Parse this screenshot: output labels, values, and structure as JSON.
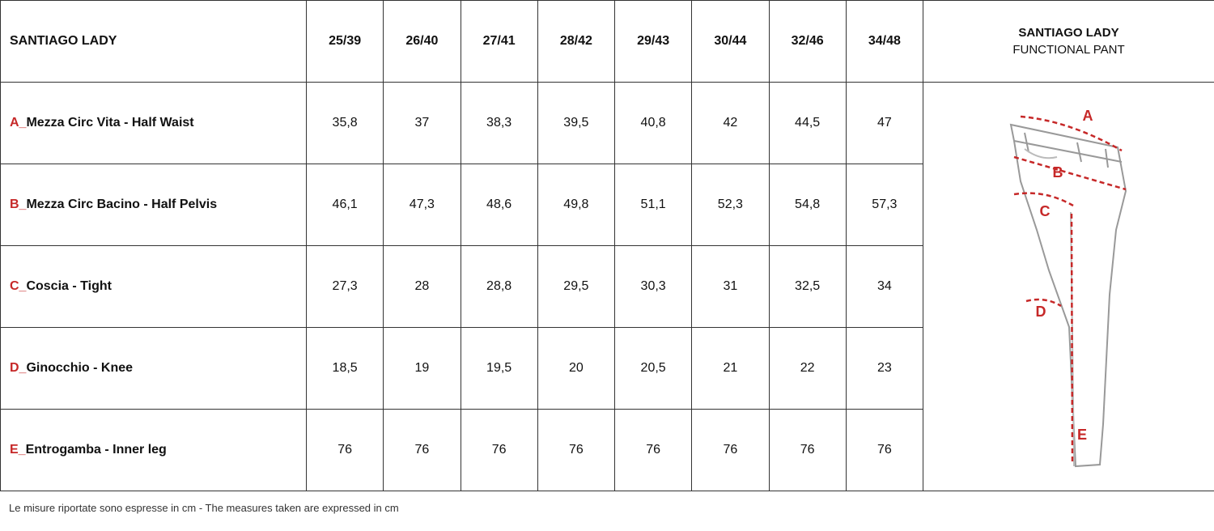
{
  "table": {
    "header": {
      "title": "SANTIAGO LADY",
      "sizes": [
        "25/39",
        "26/40",
        "27/41",
        "28/42",
        "29/43",
        "30/44",
        "32/46",
        "34/48"
      ],
      "product_line1": "SANTIAGO LADY",
      "product_line2": "FUNCTIONAL PANT"
    },
    "rows": [
      {
        "letter": "A_",
        "label": "Mezza Circ Vita - Half Waist",
        "values": [
          "35,8",
          "37",
          "38,3",
          "39,5",
          "40,8",
          "42",
          "44,5",
          "47"
        ]
      },
      {
        "letter": "B_",
        "label": "Mezza Circ Bacino - Half Pelvis",
        "values": [
          "46,1",
          "47,3",
          "48,6",
          "49,8",
          "51,1",
          "52,3",
          "54,8",
          "57,3"
        ]
      },
      {
        "letter": "C_",
        "label": "Coscia - Tight",
        "values": [
          "27,3",
          "28",
          "28,8",
          "29,5",
          "30,3",
          "31",
          "32,5",
          "34"
        ]
      },
      {
        "letter": "D_",
        "label": "Ginocchio - Knee",
        "values": [
          "18,5",
          "19",
          "19,5",
          "20",
          "20,5",
          "21",
          "22",
          "23"
        ]
      },
      {
        "letter": "E_",
        "label": "Entrogamba - Inner leg",
        "values": [
          "76",
          "76",
          "76",
          "76",
          "76",
          "76",
          "76",
          "76"
        ]
      }
    ]
  },
  "diagram": {
    "labels": [
      "A",
      "B",
      "C",
      "D",
      "E"
    ]
  },
  "footer": {
    "note": "Le misure riportate sono espresse in cm - The measures taken are expressed in cm"
  }
}
